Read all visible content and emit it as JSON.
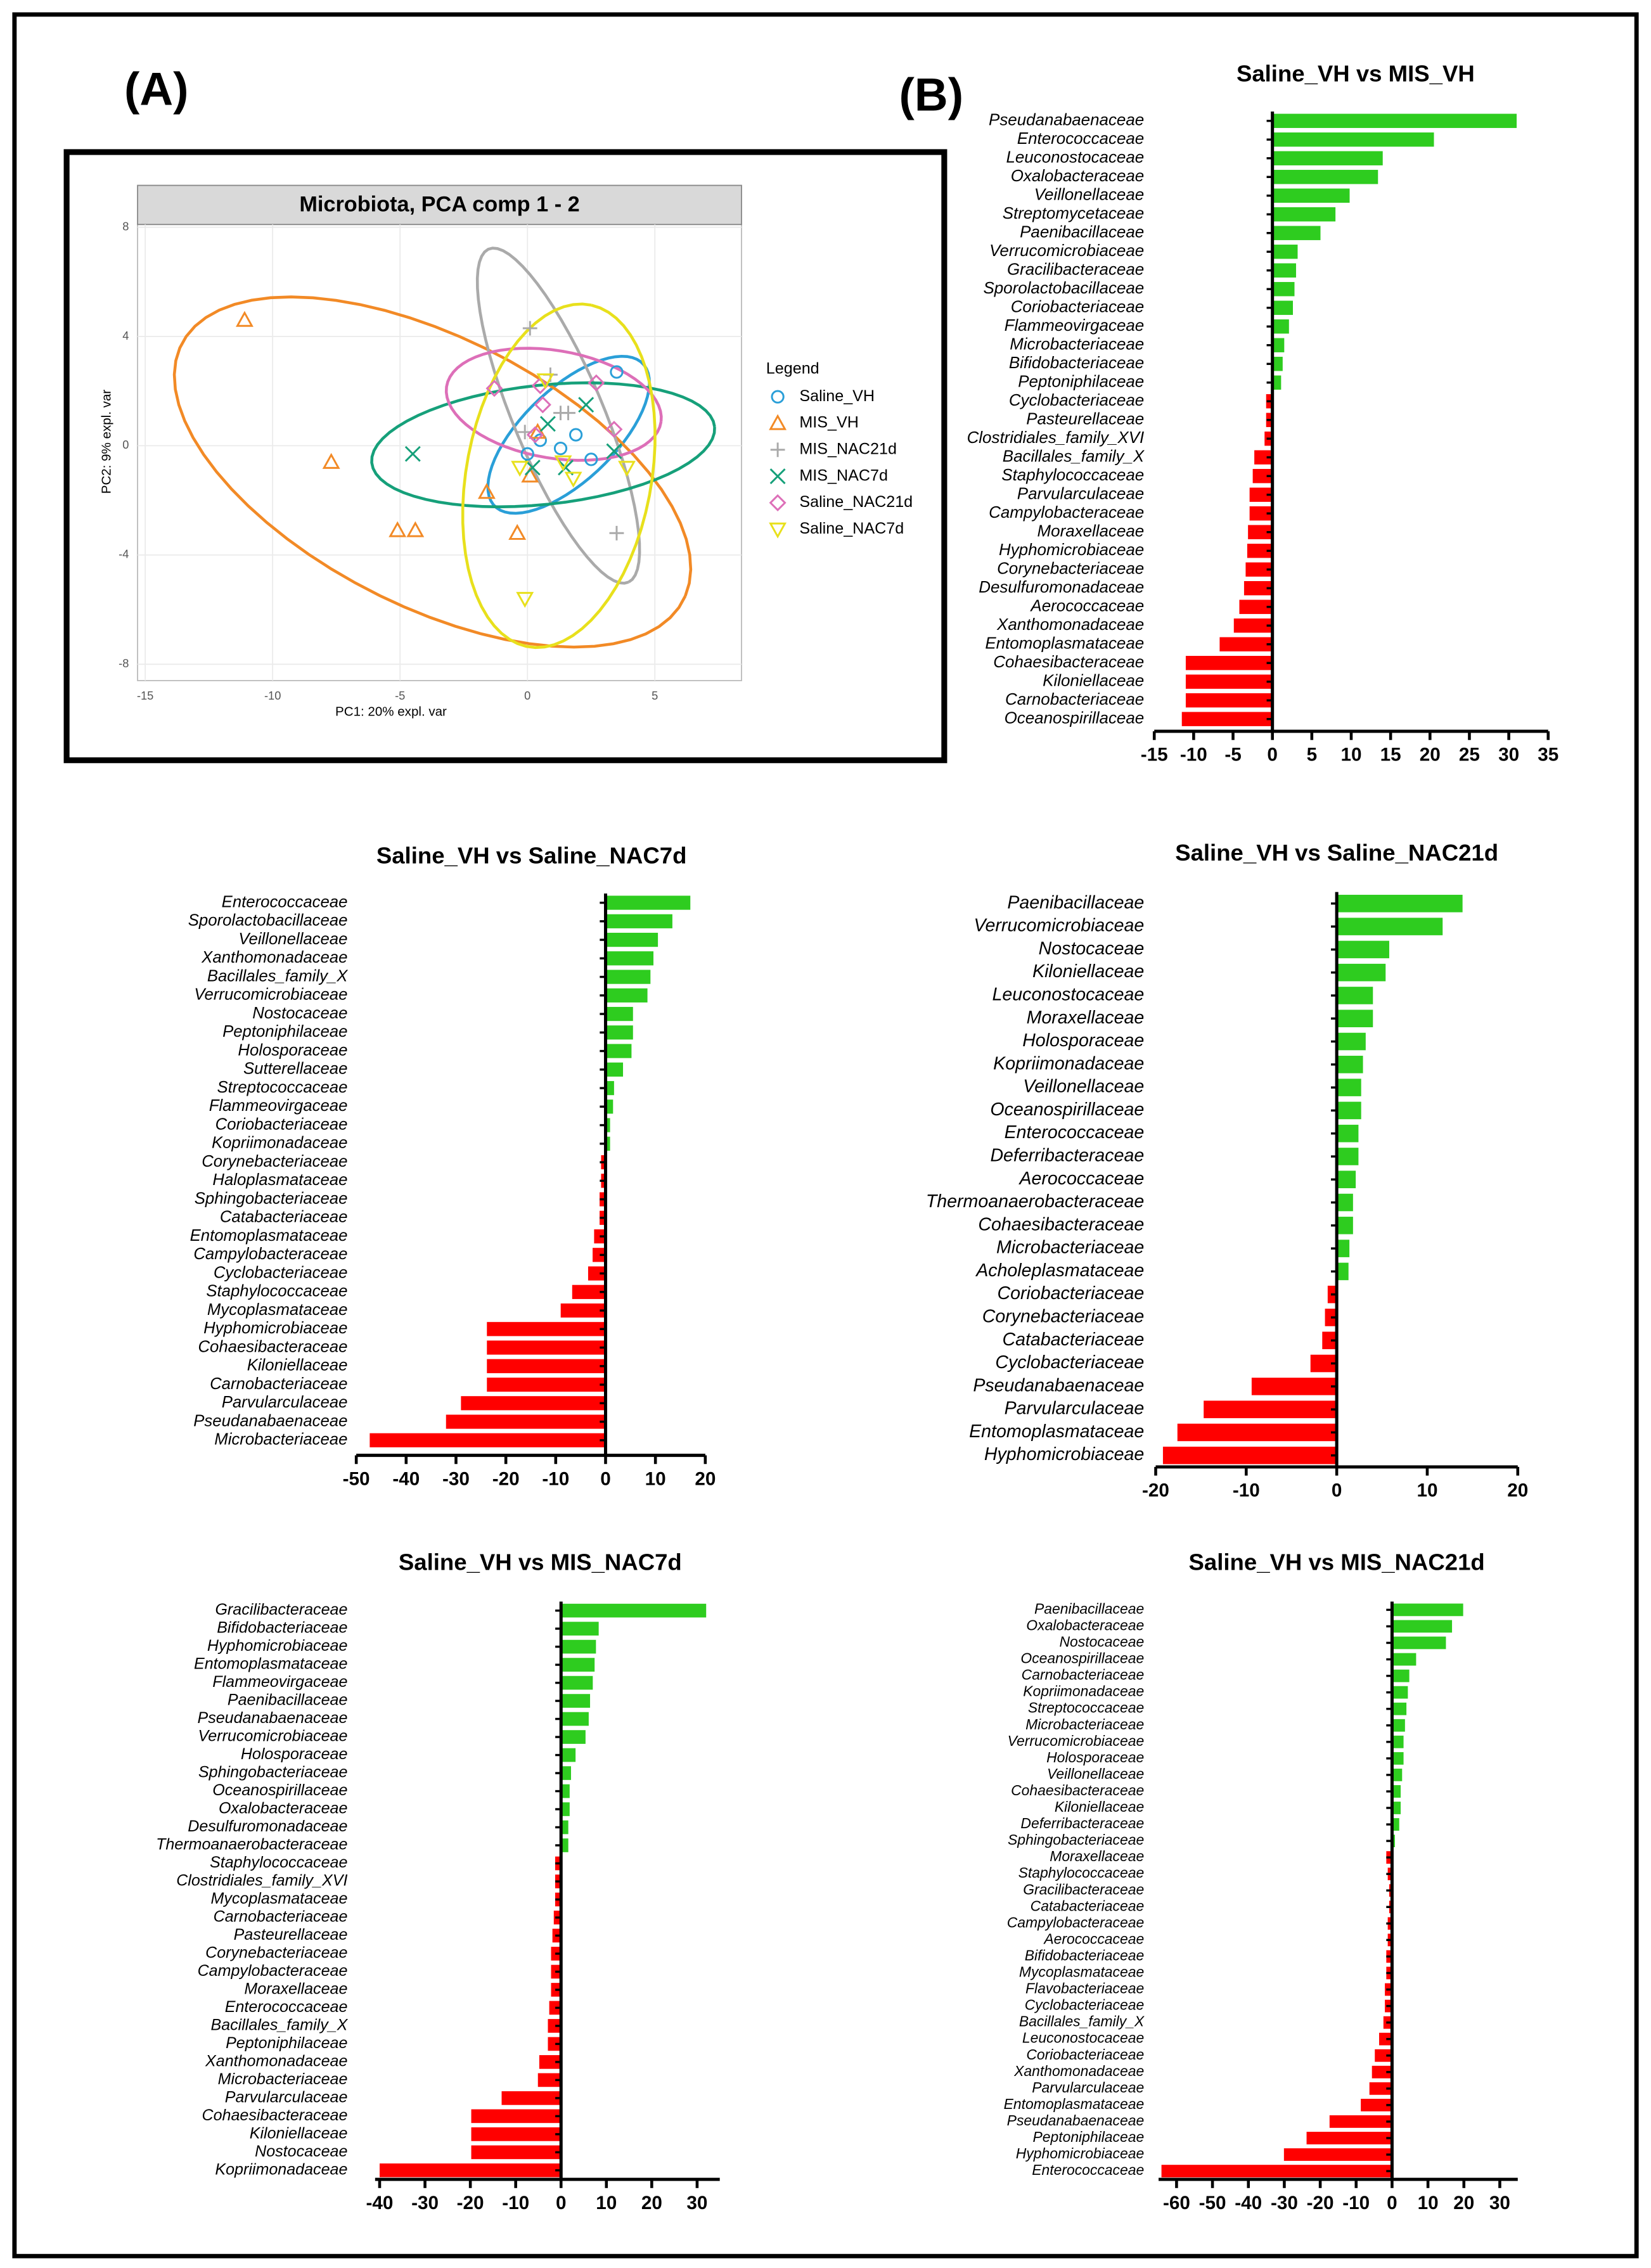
{
  "panel_labels": [
    "(A)",
    "(B)"
  ],
  "chart_data": [
    {
      "type": "scatter",
      "title": "Microbiota, PCA comp 1 - 2",
      "xlabel": "PC1: 20% expl. var",
      "ylabel": "PC2: 9% expl. var",
      "legend_title": "Legend",
      "xlim": [
        -15.3,
        8.4
      ],
      "ylim": [
        -8.6,
        8.1
      ],
      "xticks": [
        -15,
        -10,
        -5,
        0,
        5
      ],
      "yticks": [
        -8,
        -4,
        0,
        4,
        8
      ],
      "grid": true,
      "ellipses": true,
      "series": [
        {
          "name": "Saline_VH",
          "color": "#2a9fd8",
          "marker": "circle",
          "x": [
            3.5,
            1.9,
            0,
            1.3,
            0.5,
            2.5
          ],
          "values": [
            2.7,
            0.4,
            -0.3,
            -0.1,
            0.2,
            -0.5
          ]
        },
        {
          "name": "MIS_VH",
          "color": "#f28a26",
          "marker": "triangle-up",
          "x": [
            -11.1,
            -7.7,
            -5.1,
            -4.4,
            -1.6,
            -0.4,
            0.1,
            0.4
          ],
          "values": [
            4.6,
            -0.6,
            -3.1,
            -3.1,
            -1.7,
            -3.2,
            -1.1,
            0.5
          ]
        },
        {
          "name": "MIS_NAC21d",
          "color": "#aaaaaa",
          "marker": "plus",
          "x": [
            0.1,
            0.9,
            1.3,
            1.6,
            3.5,
            -0.1
          ],
          "values": [
            4.3,
            2.6,
            1.2,
            1.2,
            -3.2,
            0.5
          ]
        },
        {
          "name": "MIS_NAC7d",
          "color": "#16a07a",
          "marker": "x",
          "x": [
            -4.5,
            0.2,
            1.5,
            2.3,
            3.4,
            0.8
          ],
          "values": [
            -0.3,
            -0.8,
            -0.8,
            1.5,
            -0.2,
            0.8
          ]
        },
        {
          "name": "Saline_NAC21d",
          "color": "#dd6fb8",
          "marker": "diamond",
          "x": [
            -1.3,
            0.5,
            2.7,
            3.4,
            0.6,
            0.3
          ],
          "values": [
            2.1,
            2.2,
            2.3,
            0.6,
            1.5,
            0.4
          ]
        },
        {
          "name": "Saline_NAC7d",
          "color": "#e8e01c",
          "marker": "triangle-down",
          "x": [
            -0.1,
            3.9,
            1.4,
            0.7,
            -0.3,
            1.8
          ],
          "values": [
            -5.6,
            -0.8,
            -0.6,
            2.4,
            -0.8,
            -1.2
          ]
        }
      ]
    },
    {
      "type": "barh",
      "title": "Saline_VH vs MIS_VH",
      "positive_color": "#2ecc1f",
      "negative_color": "#ff0000",
      "xlim": [
        -15,
        35
      ],
      "xticks": [
        -15,
        -10,
        -5,
        0,
        5,
        10,
        15,
        20,
        25,
        30,
        35
      ],
      "categories": [
        "Pseudanabaenaceae",
        "Enterococcaceae",
        "Leuconostocaceae",
        "Oxalobacteraceae",
        "Veillonellaceae",
        "Streptomycetaceae",
        "Paenibacillaceae",
        "Verrucomicrobiaceae",
        "Gracilibacteraceae",
        "Sporolactobacillaceae",
        "Coriobacteriaceae",
        "Flammeovirgaceae",
        "Microbacteriaceae",
        "Bifidobacteriaceae",
        "Peptoniphilaceae",
        "Cyclobacteriaceae",
        "Pasteurellaceae",
        "Clostridiales_family_XVI",
        "Bacillales_family_X",
        "Staphylococcaceae",
        "Parvularculaceae",
        "Campylobacteraceae",
        "Moraxellaceae",
        "Hyphomicrobiaceae",
        "Corynebacteriaceae",
        "Desulfuromonadaceae",
        "Aerococcaceae",
        "Xanthomonadaceae",
        "Entomoplasmataceae",
        "Cohaesibacteraceae",
        "Kiloniellaceae",
        "Carnobacteriaceae",
        "Oceanospirillaceae"
      ],
      "values": [
        31,
        20.5,
        14,
        13.4,
        9.8,
        8,
        6.1,
        3.2,
        3,
        2.8,
        2.6,
        2.1,
        1.5,
        1.3,
        1.1,
        -0.8,
        -0.8,
        -1,
        -2.3,
        -2.5,
        -2.9,
        -2.9,
        -3.1,
        -3.2,
        -3.4,
        -3.6,
        -4.2,
        -4.9,
        -6.7,
        -11,
        -11,
        -11,
        -11.5
      ]
    },
    {
      "type": "barh",
      "title": "Saline_VH vs Saline_NAC7d",
      "positive_color": "#2ecc1f",
      "negative_color": "#ff0000",
      "xlim": [
        -50,
        20
      ],
      "xticks": [
        -50,
        -40,
        -30,
        -20,
        -10,
        0,
        10,
        20
      ],
      "categories": [
        "Enterococcaceae",
        "Sporolactobacillaceae",
        "Veillonellaceae",
        "Xanthomonadaceae",
        "Bacillales_family_X",
        "Verrucomicrobiaceae",
        "Nostocaceae",
        "Peptoniphilaceae",
        "Holosporaceae",
        "Sutterellaceae",
        "Streptococcaceae",
        "Flammeovirgaceae",
        "Coriobacteriaceae",
        "Kopriimonadaceae",
        "Corynebacteriaceae",
        "Haloplasmataceae",
        "Sphingobacteriaceae",
        "Catabacteriaceae",
        "Entomoplasmataceae",
        "Campylobacteraceae",
        "Cyclobacteriaceae",
        "Staphylococcaceae",
        "Mycoplasmataceae",
        "Hyphomicrobiaceae",
        "Cohaesibacteraceae",
        "Kiloniellaceae",
        "Carnobacteriaceae",
        "Parvularculaceae",
        "Pseudanabaenaceae",
        "Microbacteriaceae"
      ],
      "values": [
        17,
        13.4,
        10.5,
        9.6,
        9,
        8.4,
        5.5,
        5.5,
        5.2,
        3.5,
        1.7,
        1.5,
        0.9,
        0.9,
        -0.9,
        -0.9,
        -1.2,
        -1.2,
        -2.3,
        -2.6,
        -3.5,
        -6.7,
        -9,
        -23.8,
        -23.8,
        -23.8,
        -23.8,
        -29,
        -32,
        -47.3
      ]
    },
    {
      "type": "barh",
      "title": "Saline_VH vs Saline_NAC21d",
      "positive_color": "#2ecc1f",
      "negative_color": "#ff0000",
      "xlim": [
        -20,
        20
      ],
      "xticks": [
        -20,
        -10,
        0,
        10,
        20
      ],
      "categories": [
        "Paenibacillaceae",
        "Verrucomicrobiaceae",
        "Nostocaceae",
        "Kiloniellaceae",
        "Leuconostocaceae",
        "Moraxellaceae",
        "Holosporaceae",
        "Kopriimonadaceae",
        "Veillonellaceae",
        "Oceanospirillaceae",
        "Enterococcaceae",
        "Deferribacteraceae",
        "Aerococcaceae",
        "Thermoanaerobacteraceae",
        "Cohaesibacteraceae",
        "Microbacteriaceae",
        "Acholeplasmataceae",
        "Coriobacteriaceae",
        "Corynebacteriaceae",
        "Catabacteriaceae",
        "Cyclobacteriaceae",
        "Pseudanabaenaceae",
        "Parvularculaceae",
        "Entomoplasmataceae",
        "Hyphomicrobiaceae"
      ],
      "values": [
        13.9,
        11.7,
        5.8,
        5.4,
        4,
        4,
        3.2,
        2.9,
        2.7,
        2.7,
        2.4,
        2.4,
        2.1,
        1.8,
        1.8,
        1.4,
        1.3,
        -1,
        -1.3,
        -1.6,
        -2.9,
        -9.4,
        -14.7,
        -17.6,
        -19.2
      ]
    },
    {
      "type": "barh",
      "title": "Saline_VH vs MIS_NAC7d",
      "positive_color": "#2ecc1f",
      "negative_color": "#ff0000",
      "xlim": [
        -41,
        35
      ],
      "xticks": [
        -40,
        -30,
        -20,
        -10,
        0,
        10,
        20,
        30
      ],
      "categories": [
        "Gracilibacteraceae",
        "Bifidobacteriaceae",
        "Hyphomicrobiaceae",
        "Entomoplasmataceae",
        "Flammeovirgaceae",
        "Paenibacillaceae",
        "Pseudanabaenaceae",
        "Verrucomicrobiaceae",
        "Holosporaceae",
        "Sphingobacteriaceae",
        "Oceanospirillaceae",
        "Oxalobacteraceae",
        "Desulfuromonadaceae",
        "Thermoanaerobacteraceae",
        "Staphylococcaceae",
        "Clostridiales_family_XVI",
        "Mycoplasmataceae",
        "Carnobacteriaceae",
        "Pasteurellaceae",
        "Corynebacteriaceae",
        "Campylobacteraceae",
        "Moraxellaceae",
        "Enterococcaceae",
        "Bacillales_family_X",
        "Peptoniphilaceae",
        "Xanthomonadaceae",
        "Microbacteriaceae",
        "Parvularculaceae",
        "Cohaesibacteraceae",
        "Kiloniellaceae",
        "Nostocaceae",
        "Kopriimonadaceae"
      ],
      "values": [
        32,
        8.3,
        7.7,
        7.4,
        7,
        6.4,
        6.1,
        5.4,
        3.2,
        2.2,
        1.9,
        1.9,
        1.6,
        1.6,
        -1.3,
        -1.3,
        -1.3,
        -1.6,
        -1.9,
        -2.2,
        -2.2,
        -2.2,
        -2.6,
        -2.9,
        -2.9,
        -4.8,
        -5.1,
        -13.1,
        -19.8,
        -19.8,
        -19.8,
        -40
      ]
    },
    {
      "type": "barh",
      "title": "Saline_VH vs MIS_NAC21d",
      "positive_color": "#2ecc1f",
      "negative_color": "#ff0000",
      "xlim": [
        -65,
        35
      ],
      "xticks": [
        -60,
        -50,
        -40,
        -30,
        -20,
        -10,
        0,
        10,
        20,
        30
      ],
      "categories": [
        "Paenibacillaceae",
        "Oxalobacteraceae",
        "Nostocaceae",
        "Oceanospirillaceae",
        "Carnobacteriaceae",
        "Kopriimonadaceae",
        "Streptococcaceae",
        "Microbacteriaceae",
        "Verrucomicrobiaceae",
        "Holosporaceae",
        "Veillonellaceae",
        "Cohaesibacteraceae",
        "Kiloniellaceae",
        "Deferribacteraceae",
        "Sphingobacteriaceae",
        "Moraxellaceae",
        "Staphylococcaceae",
        "Gracilibacteraceae",
        "Catabacteriaceae",
        "Campylobacteraceae",
        "Aerococcaceae",
        "Bifidobacteriaceae",
        "Mycoplasmataceae",
        "Flavobacteriaceae",
        "Cyclobacteriaceae",
        "Bacillales_family_X",
        "Leuconostocaceae",
        "Coriobacteriaceae",
        "Xanthomonadaceae",
        "Parvularculaceae",
        "Entomoplasmataceae",
        "Pseudanabaenaceae",
        "Peptoniphilaceae",
        "Hyphomicrobiaceae",
        "Enterococcaceae"
      ],
      "values": [
        19.8,
        16.7,
        15,
        6.7,
        4.8,
        4.4,
        4,
        3.6,
        3.2,
        3.2,
        2.8,
        2.4,
        2.4,
        2,
        0.8,
        -1.6,
        -1.2,
        -0.8,
        -0.8,
        -1.2,
        -1.2,
        -1.6,
        -1.6,
        -2,
        -2,
        -2.4,
        -3.6,
        -4.8,
        -5.6,
        -6.3,
        -8.7,
        -17.4,
        -23.8,
        -30.1,
        -64.2
      ]
    }
  ]
}
